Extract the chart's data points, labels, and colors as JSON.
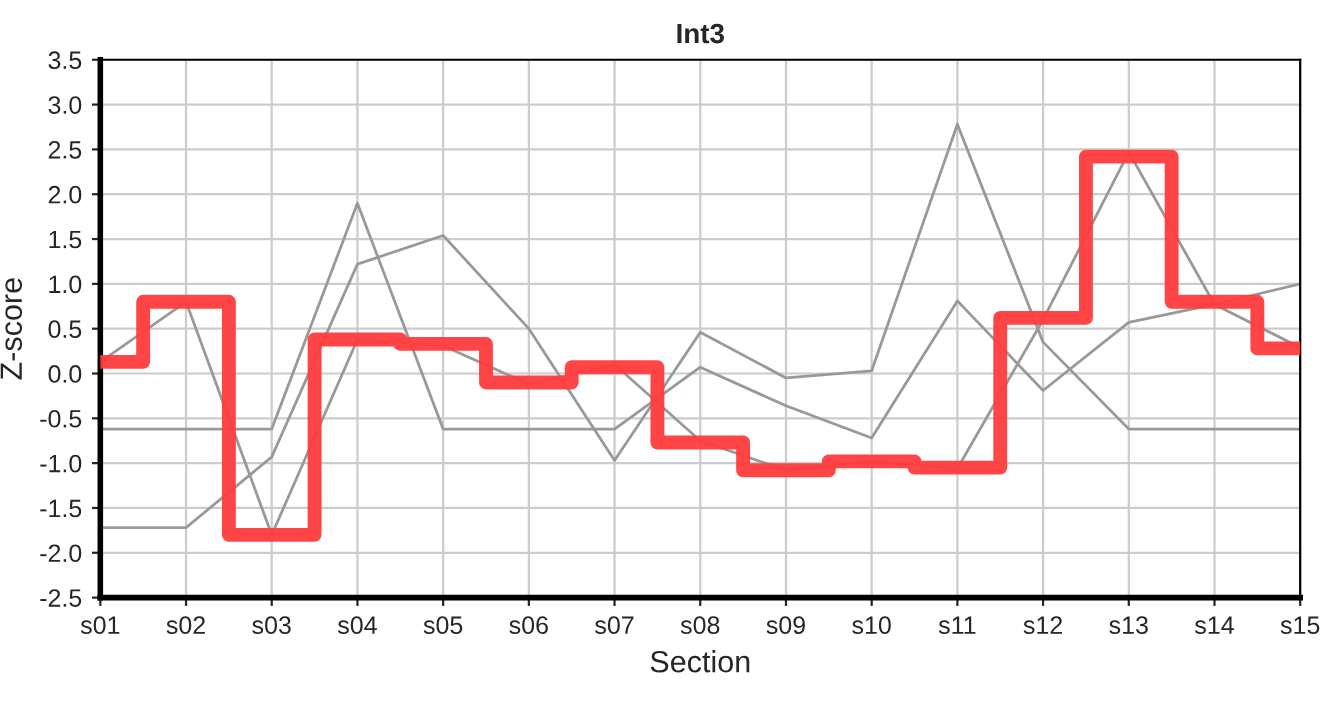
{
  "chart_data": {
    "type": "line",
    "title": "Int3",
    "xlabel": "Section",
    "ylabel": "Z-score",
    "categories": [
      "s01",
      "s02",
      "s03",
      "s04",
      "s05",
      "s06",
      "s07",
      "s08",
      "s09",
      "s10",
      "s11",
      "s12",
      "s13",
      "s14",
      "s15"
    ],
    "series": [
      {
        "color": "#999999",
        "values": [
          -1.72,
          -1.72,
          -0.93,
          1.22,
          1.54,
          0.5,
          -0.97,
          0.46,
          -0.05,
          0.03,
          2.78,
          0.35,
          -0.62,
          -0.62,
          -0.62
        ]
      },
      {
        "color": "#999999",
        "values": [
          -0.62,
          -0.62,
          -0.62,
          1.9,
          -0.62,
          -0.62,
          -0.62,
          0.07,
          -0.36,
          -0.72,
          0.81,
          -0.19,
          0.57,
          0.77,
          1.0
        ]
      },
      {
        "color": "#999999",
        "values": [
          0.13,
          0.8,
          -1.8,
          0.38,
          0.31,
          -0.12,
          0.1,
          -0.75,
          -1.08,
          -0.98,
          -1.06,
          0.6,
          2.47,
          0.77,
          0.29
        ]
      },
      {
        "type": "step",
        "color": "#ff3b3b",
        "values": [
          0.13,
          0.8,
          -1.8,
          0.38,
          0.33,
          -0.1,
          0.07,
          -0.77,
          -1.08,
          -0.98,
          -1.05,
          0.62,
          2.42,
          0.8,
          0.28
        ]
      }
    ],
    "ylim": [
      -2.5,
      3.5
    ],
    "yticks": [
      -2.5,
      {
        "value": -2,
        "label": "-2.0"
      },
      -1.5,
      {
        "value": -1,
        "label": "-1.0"
      },
      -0.5,
      {
        "value": 0,
        "label": "0.0"
      },
      0.5,
      {
        "value": 1,
        "label": "1.0"
      },
      1.5,
      {
        "value": 2,
        "label": "2.0"
      },
      2.5,
      {
        "value": 3,
        "label": "3.0"
      },
      3.5
    ],
    "grid": true,
    "legend": false,
    "marker": "none"
  }
}
